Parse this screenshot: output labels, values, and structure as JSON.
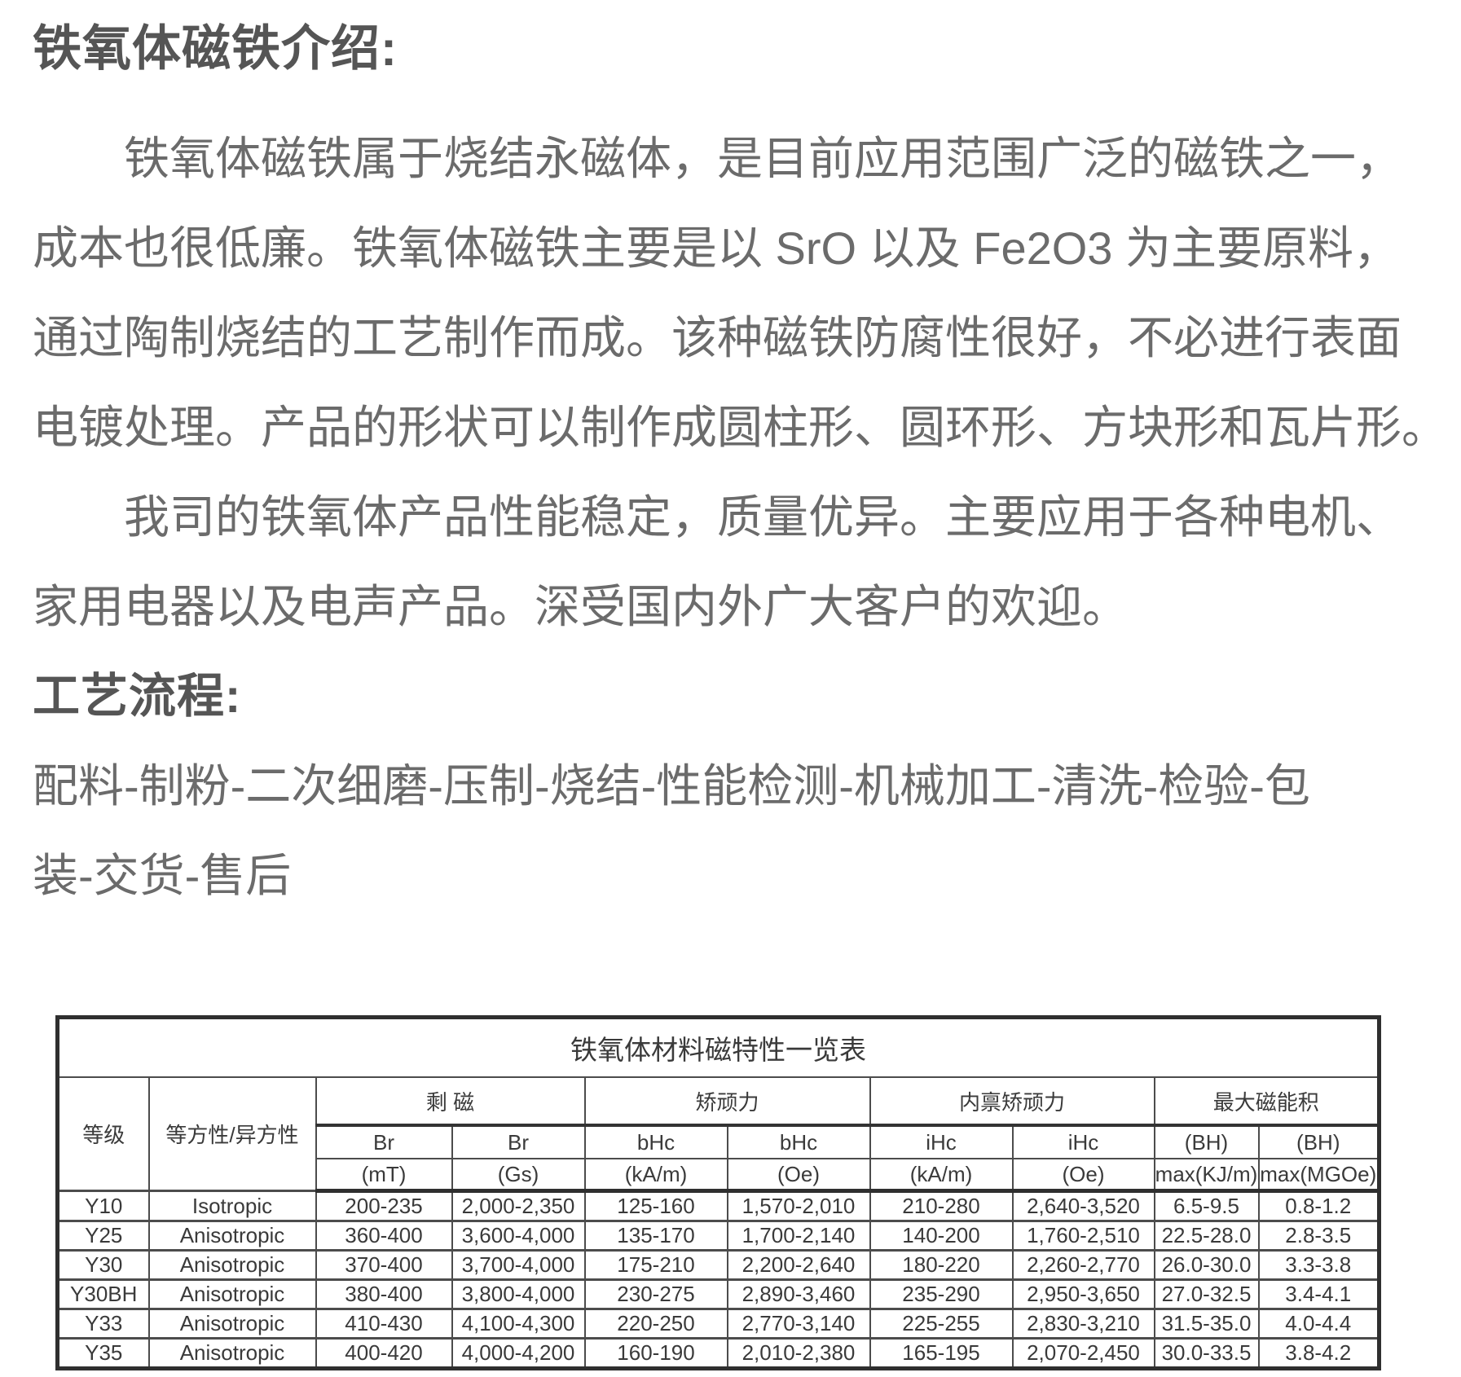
{
  "intro": {
    "heading": "铁氧体磁铁介绍:",
    "para1_lines": [
      "铁氧体磁铁属于烧结永磁体，是目前应用范围广泛的磁铁之一，",
      "成本也很低廉。铁氧体磁铁主要是以 SrO 以及 Fe2O3 为主要原料，",
      "通过陶制烧结的工艺制作而成。该种磁铁防腐性很好，不必进行表面",
      "电镀处理。产品的形状可以制作成圆柱形、圆环形、方块形和瓦片形。"
    ],
    "para2_lines": [
      "我司的铁氧体产品性能稳定，质量优异。主要应用于各种电机、",
      "家用电器以及电声产品。深受国内外广大客户的欢迎。"
    ]
  },
  "process": {
    "heading": "工艺流程:",
    "lines": [
      "配料-制粉-二次细磨-压制-烧结-性能检测-机械加工-清洗-检验-包",
      "装-交货-售后"
    ]
  },
  "table": {
    "title": "铁氧体材料磁特性一览表",
    "col1_header": "等级",
    "col2_header": "等方性/异方性",
    "groups": [
      "剩 磁",
      "矫顽力",
      "内禀矫顽力",
      "最大磁能积"
    ],
    "sub_headers": [
      "Br",
      "Br",
      "bHc",
      "bHc",
      "iHc",
      "iHc",
      "(BH)",
      "(BH)"
    ],
    "units": [
      "(mT)",
      "(Gs)",
      "(kA/m)",
      "(Oe)",
      "(kA/m)",
      "(Oe)",
      "max(KJ/m)",
      "max(MGOe)"
    ],
    "rows": [
      [
        "Y10",
        "Isotropic",
        "200-235",
        "2,000-2,350",
        "125-160",
        "1,570-2,010",
        "210-280",
        "2,640-3,520",
        "6.5-9.5",
        "0.8-1.2"
      ],
      [
        "Y25",
        "Anisotropic",
        "360-400",
        "3,600-4,000",
        "135-170",
        "1,700-2,140",
        "140-200",
        "1,760-2,510",
        "22.5-28.0",
        "2.8-3.5"
      ],
      [
        "Y30",
        "Anisotropic",
        "370-400",
        "3,700-4,000",
        "175-210",
        "2,200-2,640",
        "180-220",
        "2,260-2,770",
        "26.0-30.0",
        "3.3-3.8"
      ],
      [
        "Y30BH",
        "Anisotropic",
        "380-400",
        "3,800-4,000",
        "230-275",
        "2,890-3,460",
        "235-290",
        "2,950-3,650",
        "27.0-32.5",
        "3.4-4.1"
      ],
      [
        "Y33",
        "Anisotropic",
        "410-430",
        "4,100-4,300",
        "220-250",
        "2,770-3,140",
        "225-255",
        "2,830-3,210",
        "31.5-35.0",
        "4.0-4.4"
      ],
      [
        "Y35",
        "Anisotropic",
        "400-420",
        "4,000-4,200",
        "160-190",
        "2,010-2,380",
        "165-195",
        "2,070-2,450",
        "30.0-33.5",
        "3.8-4.2"
      ]
    ]
  },
  "colors": {
    "body_text": "#6b6b6b",
    "heading_text": "#555555",
    "table_text": "#3a3a3a",
    "table_border": "#2f2f2f"
  }
}
